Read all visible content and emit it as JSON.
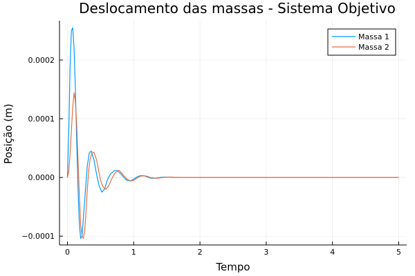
{
  "chart_data": {
    "type": "line",
    "title": "Deslocamento das massas - Sistema Objetivo",
    "xlabel": "Tempo",
    "ylabel": "Posição (m)",
    "xlim": [
      -0.12,
      5.12
    ],
    "ylim": [
      -0.000115,
      0.000267
    ],
    "x_ticks": [
      0,
      1,
      2,
      3,
      4,
      5
    ],
    "x_tick_labels": [
      "0",
      "1",
      "2",
      "3",
      "4",
      "5"
    ],
    "y_ticks": [
      -0.0001,
      0.0,
      0.0001,
      0.0002
    ],
    "y_tick_labels": [
      "-0.0001",
      "0.0000",
      "0.0001",
      "0.0002"
    ],
    "grid": true,
    "legend_position": "top-right",
    "series": [
      {
        "name": "Massa 1",
        "color": "#009AFA",
        "x": [
          0.0,
          0.02,
          0.04,
          0.06,
          0.08,
          0.1,
          0.12,
          0.14,
          0.16,
          0.18,
          0.2,
          0.22,
          0.24,
          0.27,
          0.3,
          0.33,
          0.36,
          0.4,
          0.44,
          0.48,
          0.52,
          0.56,
          0.6,
          0.62,
          0.65,
          0.7,
          0.75,
          0.8,
          0.85,
          0.9,
          0.95,
          1.0,
          1.05,
          1.1,
          1.15,
          1.2,
          1.25,
          1.3,
          1.35,
          1.4,
          1.45,
          1.5,
          1.55,
          1.6,
          1.7,
          1.8,
          1.9,
          2.0,
          2.5,
          3.0,
          3.5,
          4.0,
          4.5,
          5.0
        ],
        "y": [
          0.0,
          8e-05,
          0.00019,
          0.00025,
          0.000255,
          0.00022,
          0.00015,
          6e-05,
          -2e-05,
          -8e-05,
          -0.000104,
          -0.0001,
          -7e-05,
          -2.5e-05,
          2e-05,
          4.2e-05,
          4.5e-05,
          3e-05,
          5e-06,
          -1.5e-05,
          -2.5e-05,
          -2e-05,
          -5e-06,
          0.0,
          6e-06,
          1.1e-05,
          1.2e-05,
          7e-06,
          0.0,
          -5e-06,
          -6e-06,
          -3e-06,
          1e-06,
          3e-06,
          3e-06,
          1e-06,
          -1e-06,
          -1.5e-06,
          -1e-06,
          0.0,
          5e-07,
          6e-07,
          3e-07,
          0.0,
          0.0,
          0.0,
          0.0,
          0.0,
          0.0,
          0.0,
          0.0,
          0.0,
          0.0,
          0.0
        ]
      },
      {
        "name": "Massa 2",
        "color": "#E26F46",
        "x": [
          0.0,
          0.02,
          0.04,
          0.06,
          0.08,
          0.1,
          0.12,
          0.14,
          0.16,
          0.18,
          0.2,
          0.22,
          0.24,
          0.26,
          0.28,
          0.3,
          0.32,
          0.34,
          0.37,
          0.4,
          0.44,
          0.47,
          0.5,
          0.54,
          0.58,
          0.62,
          0.67,
          0.72,
          0.77,
          0.8,
          0.85,
          0.9,
          0.95,
          1.0,
          1.05,
          1.1,
          1.15,
          1.2,
          1.25,
          1.3,
          1.35,
          1.4,
          1.45,
          1.5,
          1.55,
          1.6,
          1.7,
          1.8,
          1.9,
          2.0,
          2.5,
          3.0,
          3.5,
          4.0,
          4.5,
          5.0
        ],
        "y": [
          0.0,
          1e-05,
          4e-05,
          8e-05,
          0.00012,
          0.000144,
          0.00013,
          9e-05,
          3e-05,
          -3e-05,
          -8e-05,
          -0.0001,
          -0.000104,
          -9e-05,
          -6e-05,
          -2e-05,
          1e-05,
          3e-05,
          4.2e-05,
          4.3e-05,
          3e-05,
          1.2e-05,
          -5e-06,
          -1.7e-05,
          -2e-05,
          -1.5e-05,
          -2e-06,
          8e-06,
          1.2e-05,
          1e-05,
          3e-06,
          -3e-06,
          -6e-06,
          -5e-06,
          -1e-06,
          2e-06,
          3e-06,
          2e-06,
          0.0,
          -1e-06,
          -1.5e-06,
          -8e-07,
          0.0,
          5e-07,
          6e-07,
          3e-07,
          0.0,
          0.0,
          0.0,
          0.0,
          0.0,
          0.0,
          0.0,
          0.0,
          0.0,
          0.0
        ]
      }
    ]
  }
}
